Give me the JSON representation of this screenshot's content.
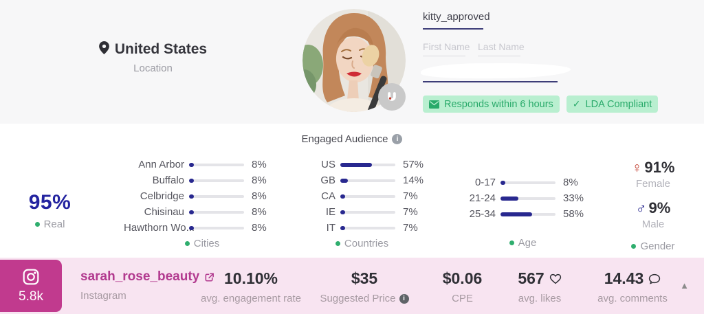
{
  "colors": {
    "navy": "#28288f",
    "magenta": "#c13a8e",
    "green": "#2fae6e",
    "badge_bg": "#b9efd0",
    "pink_bar_bg": "#f8e4f1",
    "female_red": "#c0392b"
  },
  "header": {
    "location": {
      "value": "United States",
      "label": "Location"
    },
    "profile": {
      "username": "kitty_approved",
      "first_name_placeholder": "First Name",
      "last_name_placeholder": "Last Name",
      "badges": {
        "responds": "Responds within 6 hours",
        "compliance": "LDA Compliant"
      }
    }
  },
  "audience": {
    "title": "Engaged Audience",
    "real": {
      "value": "95%",
      "label": "Real"
    },
    "gender_labels": {
      "female": "Female",
      "male": "Male"
    }
  },
  "chart_data": [
    {
      "id": "cities",
      "type": "bar",
      "title": "Cities",
      "unit": "%",
      "categories": [
        "Ann Arbor",
        "Buffalo",
        "Celbridge",
        "Chisinau",
        "Hawthorn Wo..."
      ],
      "values": [
        8,
        8,
        8,
        8,
        8
      ],
      "xlim": [
        0,
        100
      ],
      "grid": false,
      "orientation": "horizontal"
    },
    {
      "id": "countries",
      "type": "bar",
      "title": "Countries",
      "unit": "%",
      "categories": [
        "US",
        "GB",
        "CA",
        "IE",
        "IT"
      ],
      "values": [
        57,
        14,
        7,
        7,
        7
      ],
      "xlim": [
        0,
        100
      ],
      "grid": false,
      "orientation": "horizontal"
    },
    {
      "id": "age",
      "type": "bar",
      "title": "Age",
      "unit": "%",
      "categories": [
        "0-17",
        "21-24",
        "25-34"
      ],
      "values": [
        8,
        33,
        58
      ],
      "xlim": [
        0,
        100
      ],
      "grid": false,
      "orientation": "horizontal"
    },
    {
      "id": "gender",
      "type": "bar",
      "title": "Gender",
      "unit": "%",
      "categories": [
        "Female",
        "Male"
      ],
      "values": [
        91,
        9
      ]
    }
  ],
  "footer": {
    "network": {
      "followers": "5.8k",
      "platform": "Instagram"
    },
    "handle": "sarah_rose_beauty",
    "metrics": [
      {
        "value": "10.10%",
        "label": "avg. engagement rate"
      },
      {
        "value": "$35",
        "label": "Suggested Price"
      },
      {
        "value": "$0.06",
        "label": "CPE"
      },
      {
        "value": "567",
        "label": "avg. likes"
      },
      {
        "value": "14.43",
        "label": "avg. comments"
      }
    ]
  }
}
